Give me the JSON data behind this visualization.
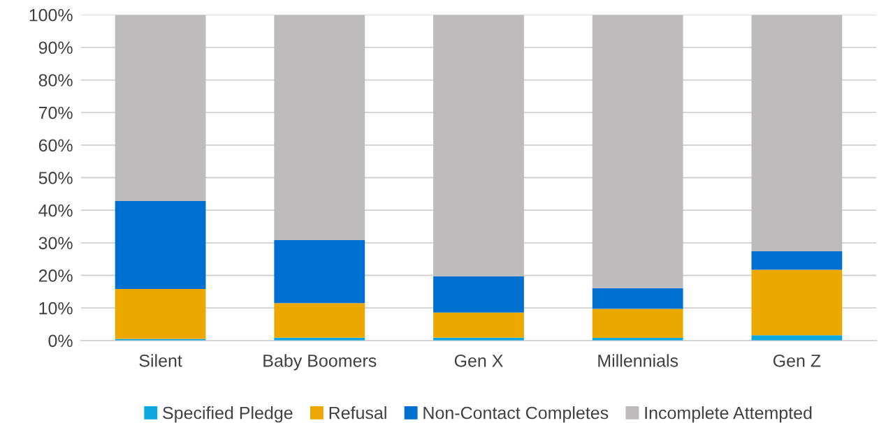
{
  "chart_data": {
    "type": "bar",
    "stacked": true,
    "categories": [
      "Silent",
      "Baby Boomers",
      "Gen X",
      "Millennials",
      "Gen Z"
    ],
    "series": [
      {
        "name": "Specified Pledge",
        "color": "#0ea7e0",
        "values": [
          0.5,
          0.9,
          0.9,
          0.8,
          1.6
        ]
      },
      {
        "name": "Refusal",
        "color": "#eba900",
        "values": [
          15.3,
          10.6,
          7.7,
          8.9,
          20.1
        ]
      },
      {
        "name": "Non-Contact Completes",
        "color": "#0070d0",
        "values": [
          27.0,
          19.3,
          11.1,
          6.4,
          5.7
        ]
      },
      {
        "name": "Incomplete Attempted",
        "color": "#bdbbbc",
        "values": [
          57.2,
          69.2,
          80.3,
          83.9,
          72.6
        ]
      }
    ],
    "ylim": [
      0,
      100
    ],
    "yticks": [
      {
        "value": 0,
        "label": "0%"
      },
      {
        "value": 10,
        "label": "10%"
      },
      {
        "value": 20,
        "label": "20%"
      },
      {
        "value": 30,
        "label": "30%"
      },
      {
        "value": 40,
        "label": "40%"
      },
      {
        "value": 50,
        "label": "50%"
      },
      {
        "value": 60,
        "label": "60%"
      },
      {
        "value": 70,
        "label": "70%"
      },
      {
        "value": 80,
        "label": "80%"
      },
      {
        "value": 90,
        "label": "90%"
      },
      {
        "value": 100,
        "label": "100%"
      }
    ],
    "grid": "y",
    "legend": "bottom"
  }
}
